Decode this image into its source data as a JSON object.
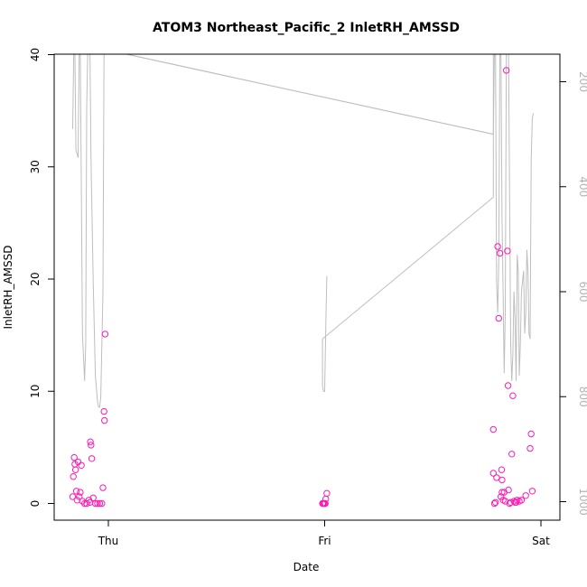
{
  "chart_data": {
    "type": "scatter",
    "title": "ATOM3 Northeast_Pacific_2 InletRH_AMSSD",
    "xlabel": "Date",
    "ylabel": "InletRH_AMSSD",
    "x_ticks": [
      "Thu",
      "Fri",
      "Sat"
    ],
    "x_tick_values": [
      0,
      1,
      2
    ],
    "ylim": [
      0,
      40
    ],
    "y_ticks": [
      0,
      10,
      20,
      30,
      40
    ],
    "y2_ticks": [
      200,
      400,
      600,
      800,
      1000
    ],
    "y2lim": [
      1030,
      140
    ],
    "y2_reversed": true,
    "grid": false,
    "series": [
      {
        "type": "points",
        "color": "#ff1ab3",
        "points": [
          {
            "x": -0.165,
            "y": 0.6
          },
          {
            "x": -0.162,
            "y": 2.4
          },
          {
            "x": -0.158,
            "y": 4.1
          },
          {
            "x": -0.155,
            "y": 3.5
          },
          {
            "x": -0.152,
            "y": 3.0
          },
          {
            "x": -0.148,
            "y": 1.1
          },
          {
            "x": -0.145,
            "y": 0.3
          },
          {
            "x": -0.14,
            "y": 3.7
          },
          {
            "x": -0.135,
            "y": 0.6
          },
          {
            "x": -0.13,
            "y": 1.0
          },
          {
            "x": -0.125,
            "y": 3.4
          },
          {
            "x": -0.12,
            "y": 0.2
          },
          {
            "x": -0.11,
            "y": 0.0
          },
          {
            "x": -0.1,
            "y": 0.0
          },
          {
            "x": -0.09,
            "y": 0.3
          },
          {
            "x": -0.085,
            "y": 0.1
          },
          {
            "x": -0.083,
            "y": 5.5
          },
          {
            "x": -0.08,
            "y": 5.2
          },
          {
            "x": -0.077,
            "y": 4.0
          },
          {
            "x": -0.07,
            "y": 0.5
          },
          {
            "x": -0.06,
            "y": 0.0
          },
          {
            "x": -0.05,
            "y": 0.0
          },
          {
            "x": -0.04,
            "y": 0.0
          },
          {
            "x": -0.03,
            "y": 0.0
          },
          {
            "x": -0.025,
            "y": 1.4
          },
          {
            "x": -0.02,
            "y": 8.2
          },
          {
            "x": -0.018,
            "y": 7.4
          },
          {
            "x": -0.015,
            "y": 15.1
          },
          {
            "x": 0.99,
            "y": 0.0
          },
          {
            "x": 0.993,
            "y": 0.0
          },
          {
            "x": 0.996,
            "y": 0.0
          },
          {
            "x": 1.0,
            "y": 0.0
          },
          {
            "x": 1.003,
            "y": 0.0
          },
          {
            "x": 1.005,
            "y": 0.4
          },
          {
            "x": 1.01,
            "y": 0.9
          },
          {
            "x": 1.78,
            "y": 6.6
          },
          {
            "x": 1.78,
            "y": 2.7
          },
          {
            "x": 1.785,
            "y": 0.0
          },
          {
            "x": 1.79,
            "y": 0.1
          },
          {
            "x": 1.795,
            "y": 2.3
          },
          {
            "x": 1.8,
            "y": 22.9
          },
          {
            "x": 1.805,
            "y": 16.5
          },
          {
            "x": 1.81,
            "y": 22.3
          },
          {
            "x": 1.815,
            "y": 0.6
          },
          {
            "x": 1.818,
            "y": 3.0
          },
          {
            "x": 1.82,
            "y": 2.1
          },
          {
            "x": 1.82,
            "y": 1.0
          },
          {
            "x": 1.825,
            "y": 0.3
          },
          {
            "x": 1.83,
            "y": 1.0
          },
          {
            "x": 1.835,
            "y": 0.2
          },
          {
            "x": 1.84,
            "y": 38.6
          },
          {
            "x": 1.845,
            "y": 22.5
          },
          {
            "x": 1.848,
            "y": 10.5
          },
          {
            "x": 1.85,
            "y": 1.2
          },
          {
            "x": 1.855,
            "y": 0.0
          },
          {
            "x": 1.86,
            "y": 0.1
          },
          {
            "x": 1.865,
            "y": 4.4
          },
          {
            "x": 1.87,
            "y": 9.6
          },
          {
            "x": 1.875,
            "y": 0.2
          },
          {
            "x": 1.88,
            "y": 0.1
          },
          {
            "x": 1.885,
            "y": 0.1
          },
          {
            "x": 1.89,
            "y": 0.3
          },
          {
            "x": 1.9,
            "y": 0.2
          },
          {
            "x": 1.91,
            "y": 0.3
          },
          {
            "x": 1.93,
            "y": 0.7
          },
          {
            "x": 1.95,
            "y": 4.9
          },
          {
            "x": 1.955,
            "y": 6.2
          },
          {
            "x": 1.96,
            "y": 1.1
          }
        ]
      },
      {
        "type": "line",
        "axis": "right",
        "color": "#bebebe",
        "points": [
          {
            "x": -0.165,
            "y": 290
          },
          {
            "x": -0.16,
            "y": 140
          },
          {
            "x": -0.155,
            "y": 140
          },
          {
            "x": -0.15,
            "y": 330
          },
          {
            "x": -0.14,
            "y": 345
          },
          {
            "x": -0.135,
            "y": 140
          },
          {
            "x": -0.13,
            "y": 140
          },
          {
            "x": -0.12,
            "y": 680
          },
          {
            "x": -0.11,
            "y": 770
          },
          {
            "x": -0.105,
            "y": 700
          },
          {
            "x": -0.1,
            "y": 250
          },
          {
            "x": -0.095,
            "y": 140
          },
          {
            "x": -0.085,
            "y": 140
          },
          {
            "x": -0.08,
            "y": 350
          },
          {
            "x": -0.07,
            "y": 580
          },
          {
            "x": -0.06,
            "y": 760
          },
          {
            "x": -0.05,
            "y": 810
          },
          {
            "x": -0.045,
            "y": 820
          },
          {
            "x": -0.04,
            "y": 820
          },
          {
            "x": -0.035,
            "y": 800
          },
          {
            "x": -0.025,
            "y": 600
          },
          {
            "x": -0.02,
            "y": 140
          },
          {
            "x": 0.0,
            "y": 140
          },
          {
            "x": 1.78,
            "y": 300
          },
          {
            "x": 1.785,
            "y": 140
          },
          {
            "x": 1.79,
            "y": 140
          },
          {
            "x": 1.795,
            "y": 585
          },
          {
            "x": 1.8,
            "y": 640
          },
          {
            "x": 1.805,
            "y": 540
          },
          {
            "x": 1.81,
            "y": 140
          },
          {
            "x": 1.815,
            "y": 140
          },
          {
            "x": 1.82,
            "y": 460
          },
          {
            "x": 1.825,
            "y": 600
          },
          {
            "x": 1.83,
            "y": 755
          },
          {
            "x": 1.835,
            "y": 640
          },
          {
            "x": 1.84,
            "y": 140
          },
          {
            "x": 1.85,
            "y": 140
          },
          {
            "x": 1.86,
            "y": 700
          },
          {
            "x": 1.865,
            "y": 770
          },
          {
            "x": 1.87,
            "y": 720
          },
          {
            "x": 1.875,
            "y": 600
          },
          {
            "x": 1.88,
            "y": 650
          },
          {
            "x": 1.885,
            "y": 770
          },
          {
            "x": 1.89,
            "y": 530
          },
          {
            "x": 1.895,
            "y": 560
          },
          {
            "x": 1.9,
            "y": 760
          },
          {
            "x": 1.905,
            "y": 700
          },
          {
            "x": 1.91,
            "y": 600
          },
          {
            "x": 1.92,
            "y": 560
          },
          {
            "x": 1.925,
            "y": 680
          },
          {
            "x": 1.93,
            "y": 640
          },
          {
            "x": 1.935,
            "y": 520
          },
          {
            "x": 1.94,
            "y": 560
          },
          {
            "x": 1.945,
            "y": 680
          },
          {
            "x": 1.95,
            "y": 690
          },
          {
            "x": 1.955,
            "y": 350
          },
          {
            "x": 1.96,
            "y": 270
          },
          {
            "x": 1.965,
            "y": 260
          }
        ]
      },
      {
        "type": "line",
        "axis": "right",
        "color": "#bebebe",
        "points": [
          {
            "x": 1.775,
            "y": 140
          },
          {
            "x": 1.78,
            "y": 140
          }
        ]
      },
      {
        "type": "line",
        "axis": "right",
        "color": "#bebebe",
        "points": [
          {
            "x": 0.0,
            "y": 140
          },
          {
            "x": 1.78,
            "y": 300
          }
        ]
      },
      {
        "type": "line",
        "axis": "right",
        "color": "#bebebe",
        "points": [
          {
            "x": 0.99,
            "y": 690
          },
          {
            "x": 0.99,
            "y": 780
          },
          {
            "x": 0.995,
            "y": 790
          },
          {
            "x": 1.0,
            "y": 790
          },
          {
            "x": 1.005,
            "y": 670
          },
          {
            "x": 1.01,
            "y": 570
          }
        ]
      },
      {
        "type": "line",
        "axis": "right",
        "color": "#bebebe",
        "points": [
          {
            "x": 0.99,
            "y": 690
          },
          {
            "x": 1.78,
            "y": 420
          }
        ]
      },
      {
        "type": "line",
        "axis": "right",
        "color": "#bebebe",
        "points": [
          {
            "x": 1.78,
            "y": 420
          },
          {
            "x": 1.78,
            "y": 140
          }
        ]
      }
    ]
  }
}
